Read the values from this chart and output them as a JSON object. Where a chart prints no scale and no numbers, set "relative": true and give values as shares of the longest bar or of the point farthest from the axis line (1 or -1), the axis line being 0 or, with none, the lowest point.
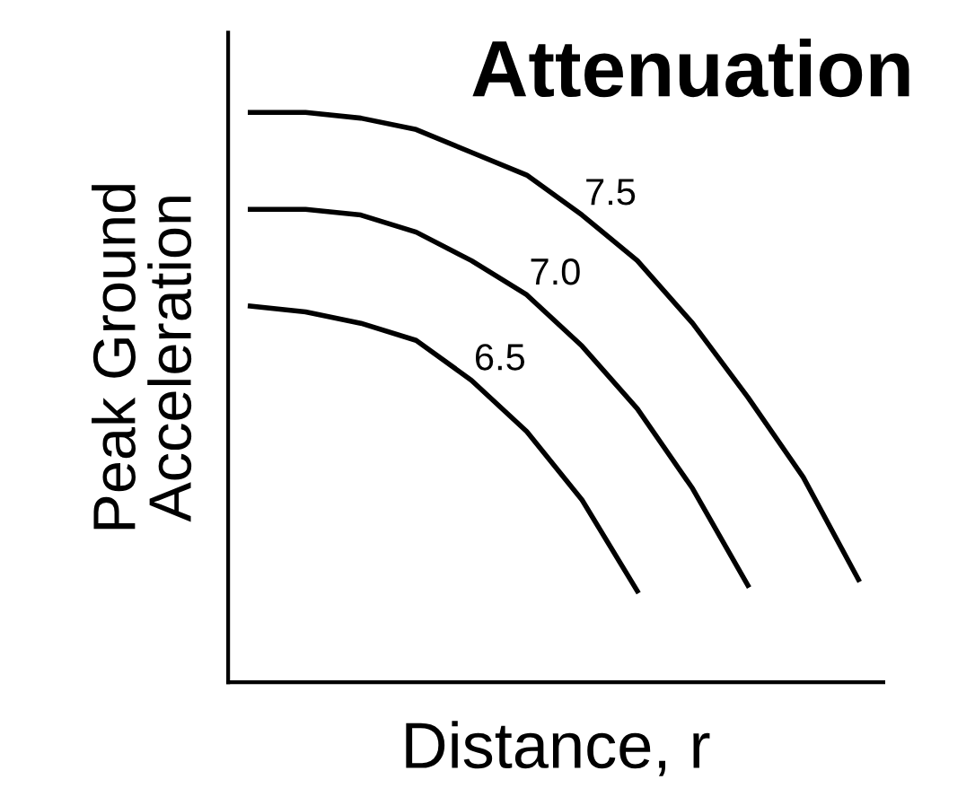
{
  "chart_data": {
    "type": "line",
    "title": "Attenuation",
    "xlabel": "Distance, r",
    "ylabel": "Peak Ground\nAcceleration",
    "relative": true,
    "categories": [
      null,
      null,
      null,
      null,
      null,
      null,
      null,
      null,
      null,
      null,
      null,
      null
    ],
    "series": [
      {
        "name": "6.5",
        "color": "#000000",
        "values": [
          0.66,
          0.65,
          0.63,
          0.6,
          0.53,
          0.44,
          0.32,
          0.16,
          null,
          null,
          null,
          null
        ]
      },
      {
        "name": "7.0",
        "color": "#000000",
        "values": [
          0.83,
          0.83,
          0.82,
          0.79,
          0.74,
          0.68,
          0.59,
          0.48,
          0.34,
          0.17,
          null,
          null
        ]
      },
      {
        "name": "7.5",
        "color": "#000000",
        "values": [
          1.0,
          1.0,
          0.99,
          0.97,
          0.93,
          0.89,
          0.82,
          0.74,
          0.63,
          0.5,
          0.36,
          0.18
        ]
      }
    ],
    "grid": false,
    "legend": false,
    "line_style": "solid",
    "marker": "none"
  }
}
